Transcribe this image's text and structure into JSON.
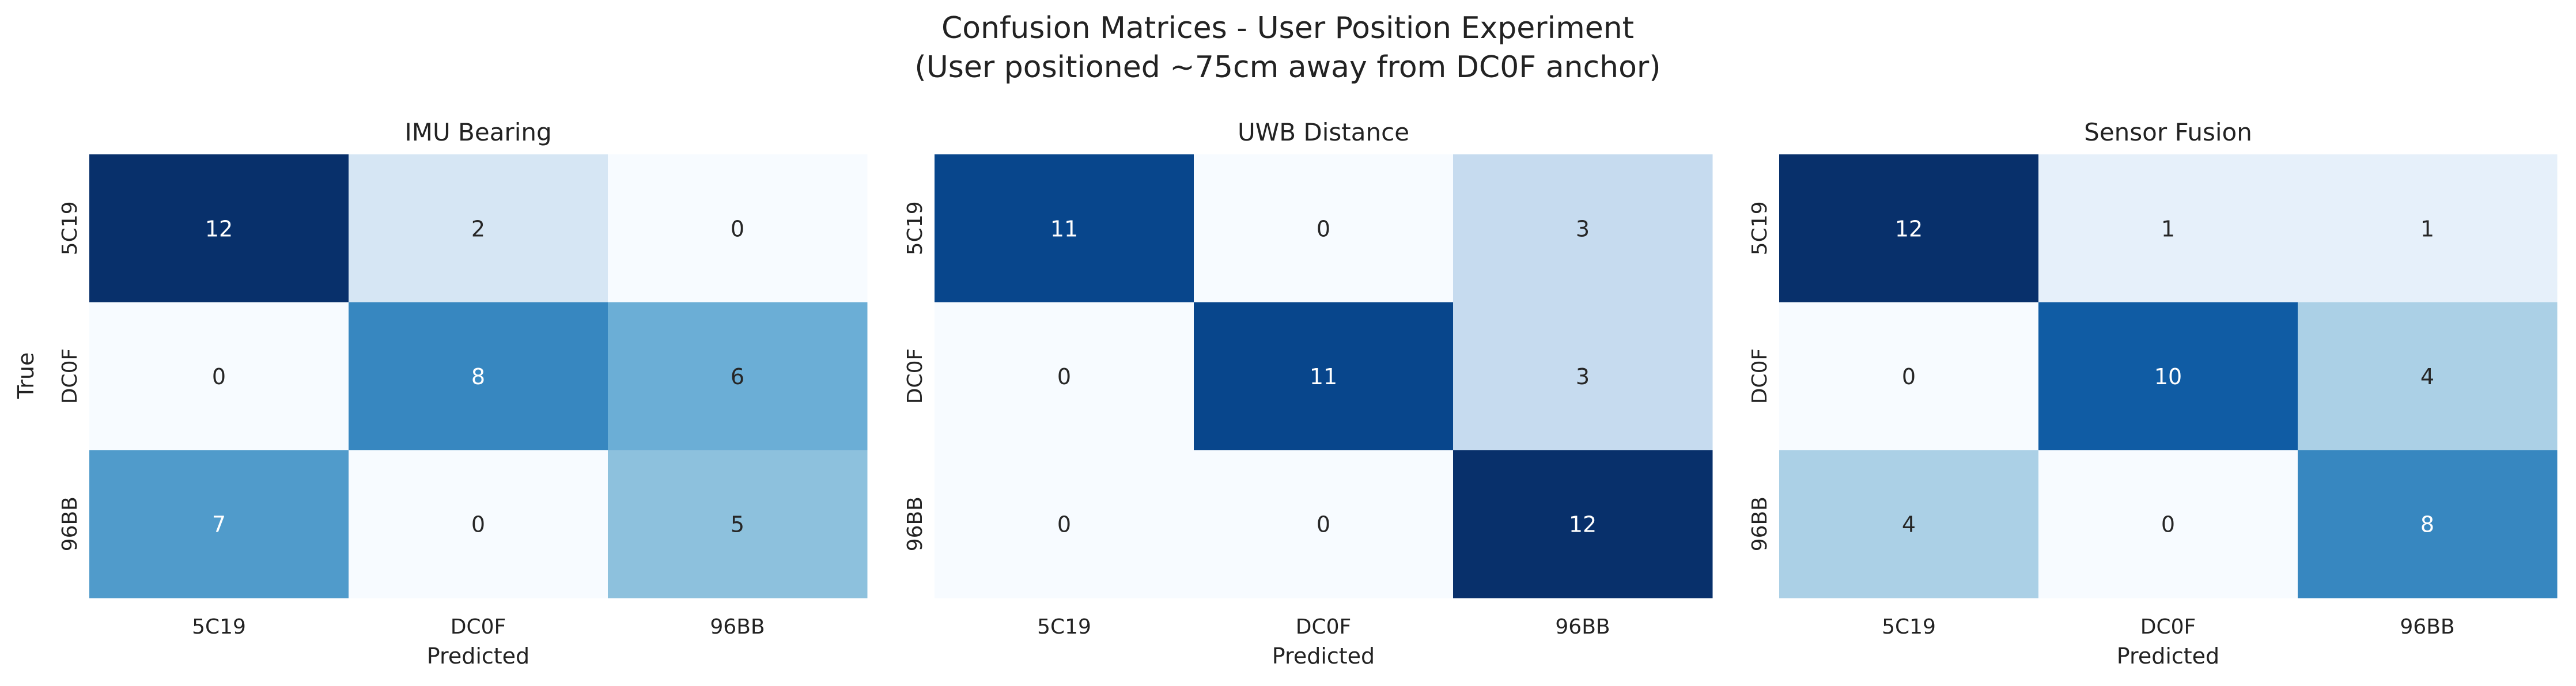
{
  "figure": {
    "title_line1": "Confusion Matrices - User Position Experiment",
    "title_line2": "(User positioned ~75cm away from DC0F anchor)"
  },
  "chart_data": [
    {
      "type": "heatmap",
      "title": "IMU Bearing",
      "xlabel": "Predicted",
      "ylabel": "True",
      "x_categories": [
        "5C19",
        "DC0F",
        "96BB"
      ],
      "y_categories": [
        "5C19",
        "DC0F",
        "96BB"
      ],
      "values": [
        [
          12,
          2,
          0
        ],
        [
          0,
          8,
          6
        ],
        [
          7,
          0,
          5
        ]
      ],
      "colormap": "Blues",
      "colorbar": false
    },
    {
      "type": "heatmap",
      "title": "UWB Distance",
      "xlabel": "Predicted",
      "ylabel": "",
      "x_categories": [
        "5C19",
        "DC0F",
        "96BB"
      ],
      "y_categories": [
        "5C19",
        "DC0F",
        "96BB"
      ],
      "values": [
        [
          11,
          0,
          3
        ],
        [
          0,
          11,
          3
        ],
        [
          0,
          0,
          12
        ]
      ],
      "colormap": "Blues",
      "colorbar": false
    },
    {
      "type": "heatmap",
      "title": "Sensor Fusion",
      "xlabel": "Predicted",
      "ylabel": "",
      "x_categories": [
        "5C19",
        "DC0F",
        "96BB"
      ],
      "y_categories": [
        "5C19",
        "DC0F",
        "96BB"
      ],
      "values": [
        [
          12,
          1,
          1
        ],
        [
          0,
          10,
          4
        ],
        [
          4,
          0,
          8
        ]
      ],
      "colormap": "Blues",
      "colorbar": false
    }
  ]
}
